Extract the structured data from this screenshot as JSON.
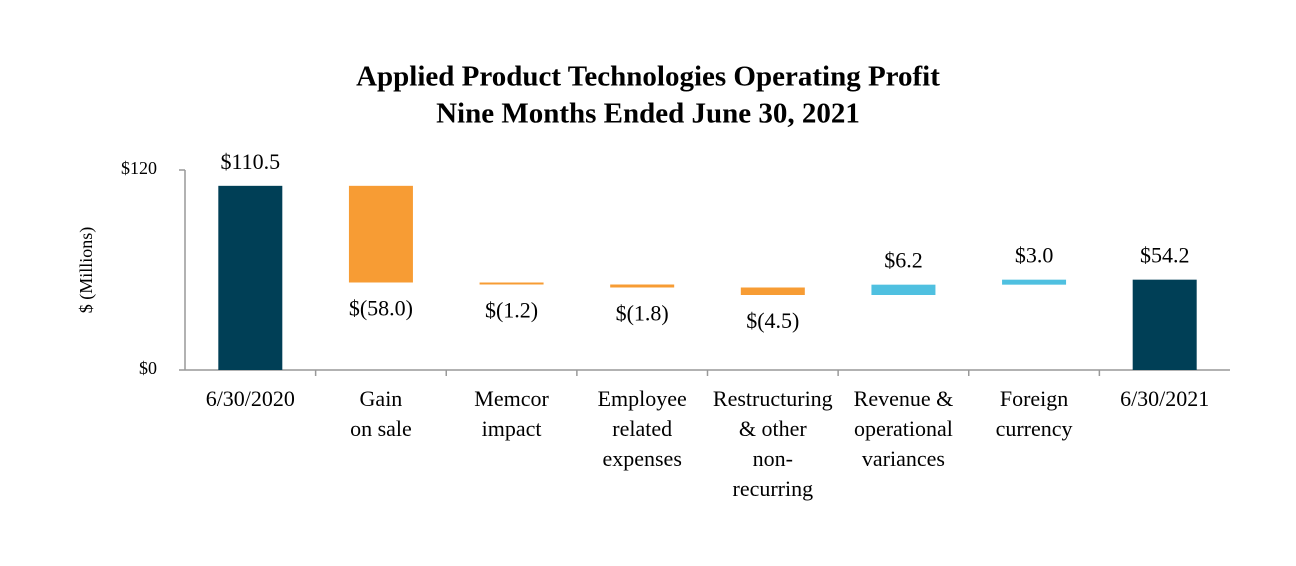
{
  "chart_data": {
    "type": "waterfall",
    "title": [
      "Applied Product Technologies Operating Profit",
      "Nine Months Ended June 30, 2021"
    ],
    "y_label": "$ (Millions)",
    "categories": [
      [
        "6/30/2020"
      ],
      [
        "Gain",
        "on sale"
      ],
      [
        "Memcor",
        "impact"
      ],
      [
        "Employee",
        "related",
        "expenses"
      ],
      [
        "Restructuring",
        "& other",
        "non-",
        "recurring"
      ],
      [
        "Revenue &",
        "operational",
        "variances"
      ],
      [
        "Foreign",
        "currency"
      ],
      [
        "6/30/2021"
      ]
    ],
    "kinds": [
      "total",
      "delta",
      "delta",
      "delta",
      "delta",
      "delta",
      "delta",
      "total"
    ],
    "values": [
      110.5,
      -58.0,
      -1.2,
      -1.8,
      -4.5,
      6.2,
      3.0,
      54.2
    ],
    "value_labels": [
      "$110.5",
      "$(58.0)",
      "$(1.2)",
      "$(1.8)",
      "$(4.5)",
      "$6.2",
      "$3.0",
      "$54.2"
    ],
    "colors": {
      "total": "#003f56",
      "decrease": "#f79c34",
      "increase": "#4fc0e0"
    },
    "ylim": [
      0,
      120
    ],
    "yticks": [
      {
        "value": 0,
        "label": "$0"
      },
      {
        "value": 120,
        "label": "$120"
      }
    ]
  }
}
